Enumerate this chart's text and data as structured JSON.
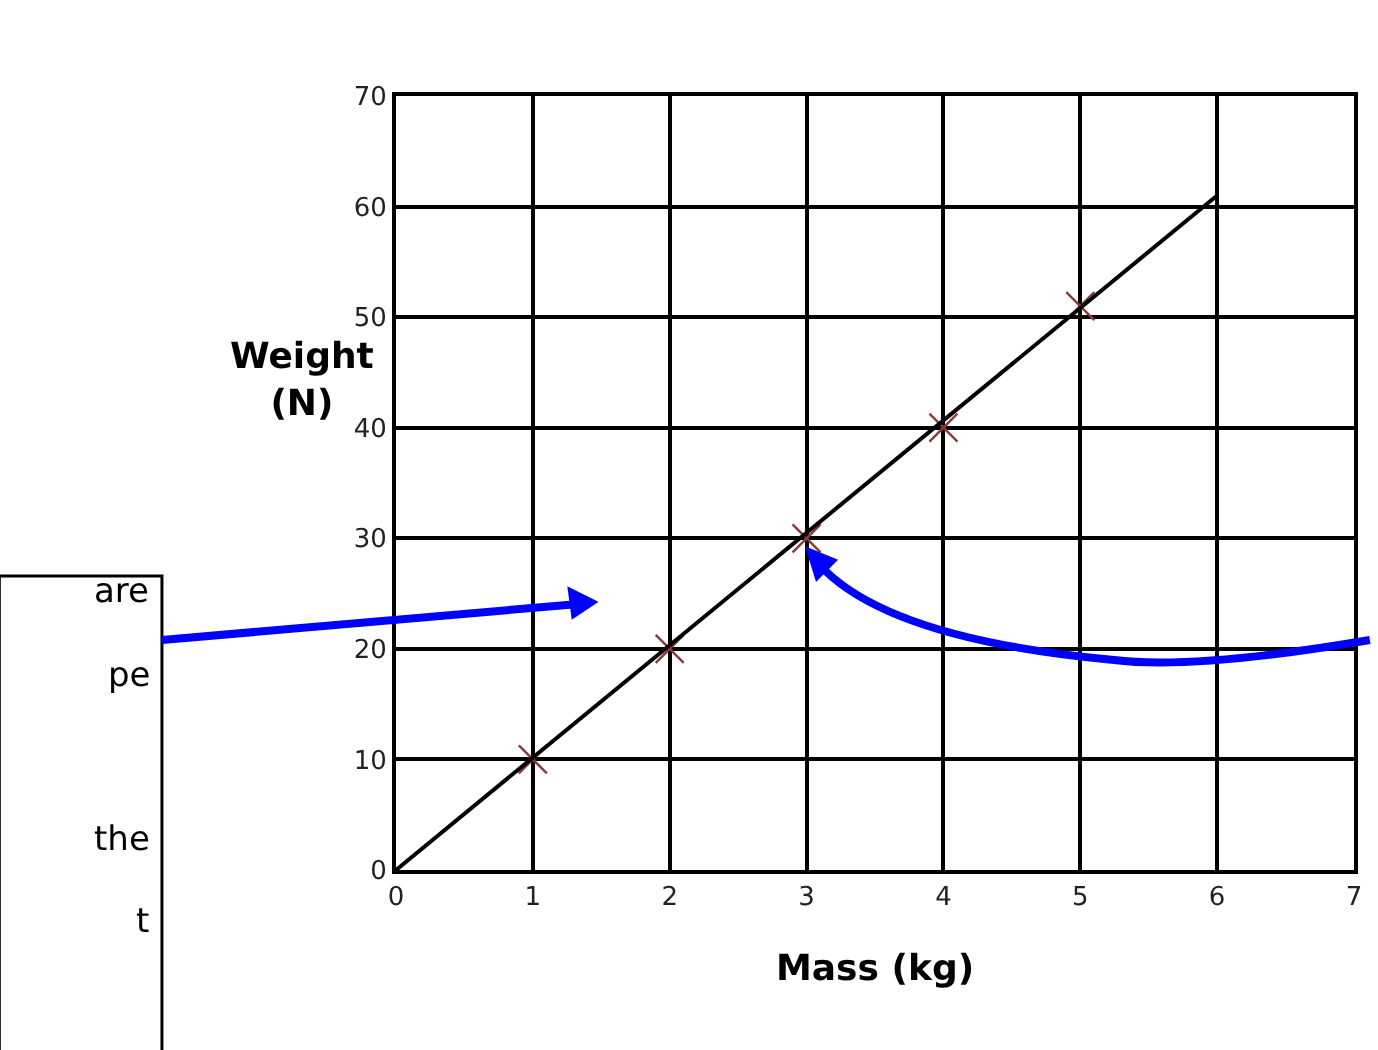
{
  "chart_data": {
    "type": "scatter",
    "xlabel": "Mass (kg)",
    "ylabel": "Weight\n(N)",
    "x": [
      1,
      2,
      3,
      4,
      5
    ],
    "series": [
      {
        "color": "#8b3a3a",
        "values": [
          10,
          20,
          30,
          40,
          51
        ],
        "marker": "cross"
      },
      {
        "type": "line",
        "color": "#000000",
        "x": [
          0,
          6
        ],
        "values": [
          0,
          61
        ],
        "marker": "none"
      }
    ],
    "xlim": [
      0,
      7
    ],
    "ylim": [
      0,
      70
    ],
    "xticks": [
      0,
      1,
      2,
      3,
      4,
      5,
      6,
      7
    ],
    "yticks": [
      0,
      10,
      20,
      30,
      40,
      50,
      60,
      70
    ],
    "grid": true,
    "legend": false,
    "annotations": [
      "are",
      "pe",
      "the",
      "t"
    ]
  }
}
